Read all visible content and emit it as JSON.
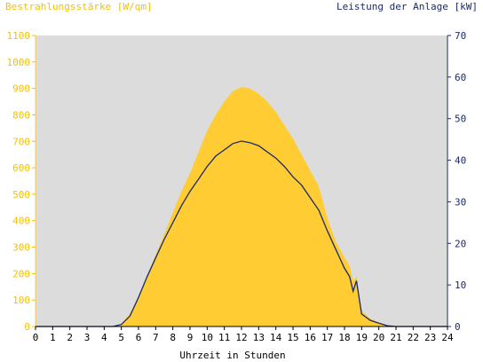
{
  "chart_data": {
    "type": "area",
    "left_axis_title": "Bestrahlungsstärke [W/qm]",
    "right_axis_title": "Leistung der Anlage [kW]",
    "xlabel": "Uhrzeit in Stunden",
    "xlim": [
      0,
      24
    ],
    "ylim_left": [
      0,
      1100
    ],
    "ylim_right": [
      0,
      70
    ],
    "x_ticks": [
      "0",
      "1",
      "2",
      "3",
      "4",
      "5",
      "6",
      "7",
      "8",
      "9",
      "10",
      "11",
      "12",
      "13",
      "14",
      "15",
      "16",
      "17",
      "18",
      "19",
      "20",
      "21",
      "22",
      "23",
      "24"
    ],
    "left_ticks": [
      "0",
      "100",
      "200",
      "300",
      "400",
      "500",
      "600",
      "700",
      "800",
      "900",
      "1000",
      "1100"
    ],
    "right_ticks": [
      "0",
      "10",
      "20",
      "30",
      "40",
      "50",
      "60",
      "70"
    ],
    "grid": false,
    "colors": {
      "plot_background": "#dcdcdc",
      "irradiance_fill": "#ffcc33",
      "power_line": "#1a2a6c",
      "left_axis": "#f5c000",
      "right_axis": "#1a2a6c"
    },
    "series": [
      {
        "axis": "left",
        "x": [
          0,
          4.5,
          5,
          5.5,
          6,
          6.5,
          7,
          7.5,
          8,
          8.5,
          9,
          9.5,
          10,
          10.5,
          11,
          11.5,
          12,
          12.5,
          13,
          13.5,
          14,
          14.5,
          15,
          15.5,
          16,
          16.5,
          17,
          17.5,
          18,
          18.3,
          18.5,
          18.7,
          19,
          19.5,
          20,
          20.5,
          21,
          24
        ],
        "values": [
          0,
          0,
          10,
          50,
          110,
          190,
          270,
          350,
          430,
          510,
          580,
          660,
          740,
          800,
          850,
          890,
          905,
          900,
          880,
          850,
          810,
          760,
          710,
          650,
          590,
          530,
          410,
          320,
          260,
          230,
          170,
          190,
          60,
          30,
          15,
          5,
          0,
          0
        ]
      },
      {
        "axis": "right",
        "x": [
          0,
          4.5,
          5,
          5.5,
          6,
          6.5,
          7,
          7.5,
          8,
          8.5,
          9,
          9.5,
          10,
          10.5,
          11,
          11.5,
          12,
          12.5,
          13,
          13.5,
          14,
          14.5,
          15,
          15.5,
          16,
          16.5,
          17,
          17.5,
          18,
          18.3,
          18.5,
          18.7,
          19,
          19.5,
          20,
          20.5,
          21,
          24
        ],
        "values": [
          0,
          0,
          0.5,
          2.5,
          7,
          12,
          16.5,
          21,
          25,
          29,
          32.5,
          35.5,
          38.5,
          41,
          42.5,
          44,
          44.6,
          44.2,
          43.5,
          42,
          40.5,
          38.5,
          36,
          34,
          31,
          28,
          23,
          18.5,
          14,
          12,
          8.5,
          11,
          3,
          1.5,
          0.8,
          0.2,
          0,
          0
        ]
      }
    ]
  }
}
